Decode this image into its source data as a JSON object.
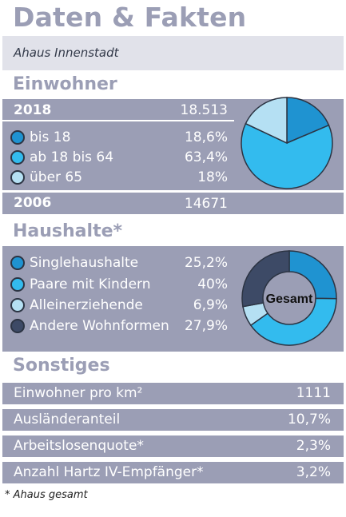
{
  "title": "Daten & Fakten",
  "subtitle": "Ahaus Innenstadt",
  "colors": {
    "dark_blue": "#1f93d1",
    "mid_blue": "#33bbee",
    "light_blue": "#b5e0f3",
    "slate": "#3d4a66",
    "panel": "#9b9eb5"
  },
  "einwohner": {
    "heading": "Einwohner",
    "year_2018": {
      "label": "2018",
      "value": "18.513"
    },
    "items": [
      {
        "label": "bis 18",
        "value": "18,6%",
        "pct": 18.6,
        "color": "#1f93d1"
      },
      {
        "label": "ab 18 bis 64",
        "value": "63,4%",
        "pct": 63.4,
        "color": "#33bbee"
      },
      {
        "label": "über 65",
        "value": "18%",
        "pct": 18,
        "color": "#b5e0f3"
      }
    ],
    "year_2006": {
      "label": "2006",
      "value": "14671"
    }
  },
  "haushalte": {
    "heading": "Haushalte*",
    "center_label": "Gesamt",
    "items": [
      {
        "label": "Singlehaushalte",
        "value": "25,2%",
        "pct": 25.2,
        "color": "#1f93d1"
      },
      {
        "label": "Paare mit Kindern",
        "value": "40%",
        "pct": 40,
        "color": "#33bbee"
      },
      {
        "label": "Alleinerziehende",
        "value": "6,9%",
        "pct": 6.9,
        "color": "#b5e0f3"
      },
      {
        "label": "Andere Wohnformen",
        "value": "27,9%",
        "pct": 27.9,
        "color": "#3d4a66"
      }
    ]
  },
  "sonstiges": {
    "heading": "Sonstiges",
    "rows": [
      {
        "label": "Einwohner pro km²",
        "value": "1111"
      },
      {
        "label": "Ausländeranteil",
        "value": "10,7%"
      },
      {
        "label": "Arbeitslosenquote*",
        "value": "2,3%"
      },
      {
        "label": "Anzahl Hartz IV-Empfänger*",
        "value": "3,2%"
      }
    ]
  },
  "footnote": "* Ahaus gesamt"
}
